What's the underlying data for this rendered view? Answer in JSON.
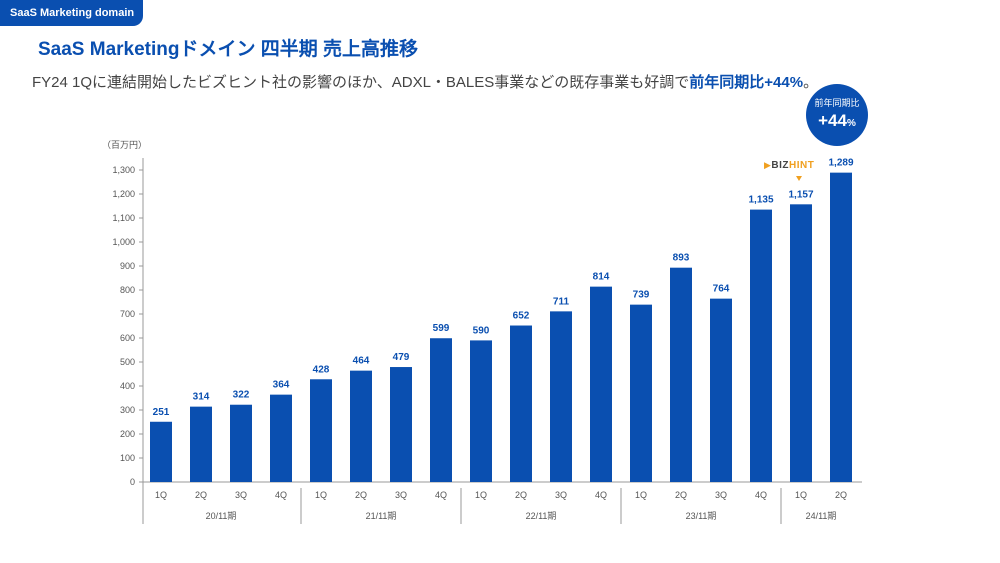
{
  "header": {
    "domain_tag": "SaaS Marketing domain",
    "title": "SaaS Marketingドメイン 四半期 売上高推移",
    "subtitle_prefix": "FY24 1Qに連結開始したビズヒント社の影響のほか、ADXL・BALES事業などの既存事業も好調で",
    "subtitle_highlight": "前年同期比+44%",
    "subtitle_suffix": "。"
  },
  "badge": {
    "label": "前年同期比",
    "value": "+44",
    "unit": "%"
  },
  "annotation": {
    "logo_text_biz": "BIZ",
    "logo_text_hint": "HINT",
    "logo_icon": "play-triangle-icon"
  },
  "colors": {
    "bar": "#0a4fb0",
    "accent": "#0a4fb0",
    "logo_orange": "#f0a020"
  },
  "chart_data": {
    "type": "bar",
    "ylabel": "（百万円）",
    "ylim": [
      0,
      1300
    ],
    "yticks": [
      0,
      100,
      200,
      300,
      400,
      500,
      600,
      700,
      800,
      900,
      1000,
      1100,
      1200,
      1300
    ],
    "ytick_labels": [
      "0",
      "100",
      "200",
      "300",
      "400",
      "500",
      "600",
      "700",
      "800",
      "900",
      "1,000",
      "1,100",
      "1,200",
      "1,300"
    ],
    "categories": [
      "1Q",
      "2Q",
      "3Q",
      "4Q",
      "1Q",
      "2Q",
      "3Q",
      "4Q",
      "1Q",
      "2Q",
      "3Q",
      "4Q",
      "1Q",
      "2Q",
      "3Q",
      "4Q",
      "1Q",
      "2Q"
    ],
    "values": [
      251,
      314,
      322,
      364,
      428,
      464,
      479,
      599,
      590,
      652,
      711,
      814,
      739,
      893,
      764,
      1135,
      1157,
      1289
    ],
    "value_labels": [
      "251",
      "314",
      "322",
      "364",
      "428",
      "464",
      "479",
      "599",
      "590",
      "652",
      "711",
      "814",
      "739",
      "893",
      "764",
      "1,135",
      "1,157",
      "1,289"
    ],
    "groups": [
      {
        "label": "20/11期",
        "count": 4
      },
      {
        "label": "21/11期",
        "count": 4
      },
      {
        "label": "22/11期",
        "count": 4
      },
      {
        "label": "23/11期",
        "count": 4
      },
      {
        "label": "24/11期",
        "count": 2
      }
    ],
    "grid": false
  }
}
